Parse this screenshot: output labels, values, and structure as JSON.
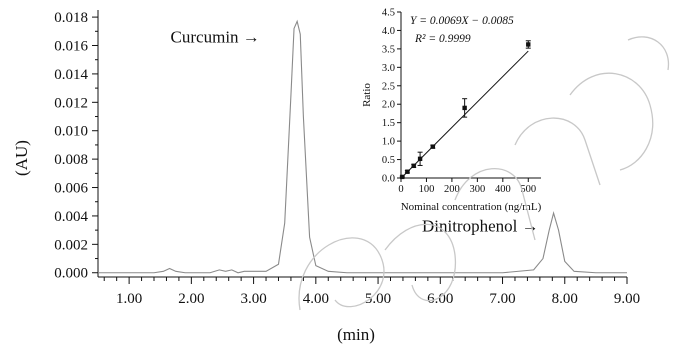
{
  "chart_data": [
    {
      "type": "line",
      "xlabel": "(min)",
      "ylabel": "(AU)",
      "xlim": [
        0.5,
        9.0
      ],
      "ylim": [
        -0.0003,
        0.0185
      ],
      "xticks": [
        "1.00",
        "2.00",
        "3.00",
        "4.00",
        "5.00",
        "6.00",
        "7.00",
        "8.00",
        "9.00"
      ],
      "xtick_values": [
        1,
        2,
        3,
        4,
        5,
        6,
        7,
        8,
        9
      ],
      "yticks": [
        "0.000",
        "0.002",
        "0.004",
        "0.006",
        "0.008",
        "0.010",
        "0.012",
        "0.014",
        "0.016",
        "0.018"
      ],
      "ytick_values": [
        0,
        0.002,
        0.004,
        0.006,
        0.008,
        0.01,
        0.012,
        0.014,
        0.016,
        0.018
      ],
      "grid": false,
      "series": [
        {
          "x": [
            0.5,
            1.0,
            1.4,
            1.55,
            1.65,
            1.75,
            1.9,
            2.3,
            2.45,
            2.55,
            2.65,
            2.75,
            2.85,
            3.0,
            3.2,
            3.4,
            3.5,
            3.6,
            3.65,
            3.7,
            3.75,
            3.8,
            3.9,
            4.0,
            4.2,
            4.5,
            5.0,
            6.0,
            7.0,
            7.5,
            7.65,
            7.75,
            7.82,
            7.9,
            8.0,
            8.15,
            8.5,
            9.0
          ],
          "y": [
            0.0,
            0.0,
            0.0,
            0.0001,
            0.0003,
            0.0001,
            0.0,
            0.0,
            0.0002,
            0.0001,
            0.0002,
            0.0,
            0.0001,
            0.0001,
            0.0001,
            0.0006,
            0.0035,
            0.0125,
            0.0172,
            0.0177,
            0.0168,
            0.011,
            0.0025,
            0.0005,
            0.0001,
            0.0,
            0.0,
            0.0,
            0.0,
            0.0002,
            0.001,
            0.003,
            0.0042,
            0.003,
            0.0008,
            0.0001,
            0.0,
            0.0
          ]
        }
      ],
      "annotations": [
        {
          "text": "Curcumin →",
          "x": 3.1,
          "y": 0.0162
        },
        {
          "text": "Dinitrophenol →",
          "x": 7.58,
          "y": 0.0029
        }
      ]
    },
    {
      "type": "scatter",
      "xlabel": "Nominal concentration (ng/mL)",
      "ylabel": "Ratio",
      "xlim": [
        0,
        550
      ],
      "ylim": [
        0,
        4.5
      ],
      "xticks": [
        "0",
        "100",
        "200",
        "300",
        "400",
        "500"
      ],
      "xtick_values": [
        0,
        100,
        200,
        300,
        400,
        500
      ],
      "yticks": [
        "0.0",
        "0.5",
        "1.0",
        "1.5",
        "2.0",
        "2.5",
        "3.0",
        "3.5",
        "4.0",
        "4.5"
      ],
      "ytick_values": [
        0,
        0.5,
        1.0,
        1.5,
        2.0,
        2.5,
        3.0,
        3.5,
        4.0,
        4.5
      ],
      "grid": false,
      "points": [
        {
          "x": 5,
          "y": 0.03,
          "err": 0.02
        },
        {
          "x": 25,
          "y": 0.17,
          "err": 0.03
        },
        {
          "x": 50,
          "y": 0.33,
          "err": 0.04
        },
        {
          "x": 75,
          "y": 0.52,
          "err": 0.18
        },
        {
          "x": 125,
          "y": 0.85,
          "err": 0.04
        },
        {
          "x": 250,
          "y": 1.9,
          "err": 0.25
        },
        {
          "x": 500,
          "y": 3.62,
          "err": 0.1
        }
      ],
      "fit": {
        "x": [
          10,
          500
        ],
        "y": [
          0.0605,
          3.4415
        ]
      },
      "equation_lines": [
        "Y = 0.0069X − 0.0085",
        "R² = 0.9999"
      ]
    }
  ]
}
